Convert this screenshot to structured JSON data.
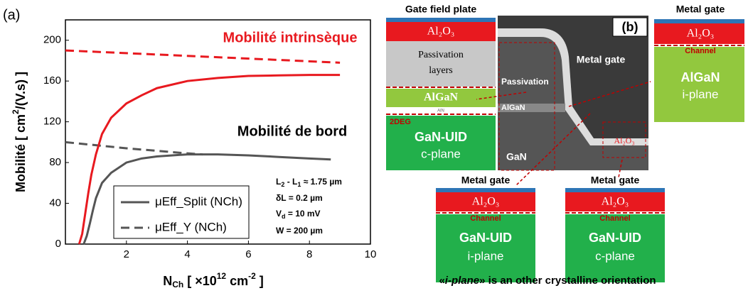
{
  "chart_data": {
    "type": "line",
    "panel_label": "(a)",
    "x_label": [
      "N",
      "Ch",
      " [ ×10",
      "12",
      " cm",
      "-2",
      " ]"
    ],
    "y_label": [
      "Mobilité [ cm",
      "2",
      "/(V.s) ]"
    ],
    "xlim": [
      0,
      10
    ],
    "ylim": [
      0,
      220
    ],
    "xticks": [
      2,
      4,
      6,
      8,
      10
    ],
    "yticks": [
      0,
      40,
      80,
      120,
      160,
      200
    ],
    "series": [
      {
        "name": "μEff_Split (NCh)",
        "color": "#555555",
        "dash": false,
        "x": [
          0.6,
          0.7,
          0.8,
          0.9,
          1,
          1.2,
          1.5,
          2,
          2.5,
          3,
          4,
          5,
          6,
          7,
          8,
          8.7
        ],
        "values": [
          0,
          8,
          20,
          33,
          45,
          60,
          70,
          80,
          84,
          86,
          88,
          88,
          87,
          85.5,
          84,
          83
        ]
      },
      {
        "name": "μEff_Y (NCh)",
        "color": "#555555",
        "dash": true,
        "x": [
          0,
          1,
          2,
          3,
          4,
          4.5
        ],
        "values": [
          100,
          97,
          94,
          91.5,
          89,
          88
        ]
      },
      {
        "color": "#e8191f",
        "dash": false,
        "x": [
          0.45,
          0.55,
          0.65,
          0.75,
          0.85,
          1,
          1.2,
          1.5,
          2,
          2.5,
          3,
          4,
          5,
          6,
          7,
          8,
          9
        ],
        "values": [
          0,
          10,
          30,
          50,
          68,
          88,
          108,
          124,
          138,
          146,
          153,
          160,
          163,
          165,
          165.5,
          166,
          166
        ]
      },
      {
        "color": "#e8191f",
        "dash": true,
        "x": [
          0,
          9
        ],
        "values": [
          190,
          178
        ]
      }
    ],
    "annotations": [
      "Mobilité intrinsèque",
      "Mobilité de bord"
    ],
    "params": [
      [
        "L",
        "2",
        " - L",
        "1",
        " ≈ 1.75 µm"
      ],
      [
        "δL = 0.2 µm"
      ],
      [
        "V",
        "d",
        " = 10 mV"
      ],
      [
        "W = 200 µm"
      ]
    ]
  },
  "diagram": {
    "gate_field_plate": {
      "title": "Gate field plate",
      "oxide": "Al₂O₃",
      "passivation": [
        "Passivation",
        "layers"
      ],
      "algan": "AlGaN",
      "aln": "AlN",
      "twodeg": "2DEG",
      "substrate": "GaN-UID",
      "plane": "c-plane"
    },
    "sem": {
      "label": "(b)",
      "metal_gate": "Metal gate",
      "passivation": "Passivation",
      "algan": "AlGaN",
      "gan": "GaN",
      "oxide": "Al₂O₃"
    },
    "stack_right": {
      "title": "Metal gate",
      "oxide": "Al₂O₃",
      "channel": "Channel",
      "substrate": "AlGaN",
      "plane": "i-plane"
    },
    "stack_bottom_1": {
      "title": "Metal gate",
      "oxide": "Al₂O₃",
      "channel": "Channel",
      "substrate": "GaN-UID",
      "plane": "i-plane"
    },
    "stack_bottom_2": {
      "title": "Metal gate",
      "oxide": "Al₂O₃",
      "channel": "Channel",
      "substrate": "GaN-UID",
      "plane": "c-plane"
    },
    "caption": [
      "«",
      "i-plane",
      "» is an other crystalline orientation"
    ]
  }
}
